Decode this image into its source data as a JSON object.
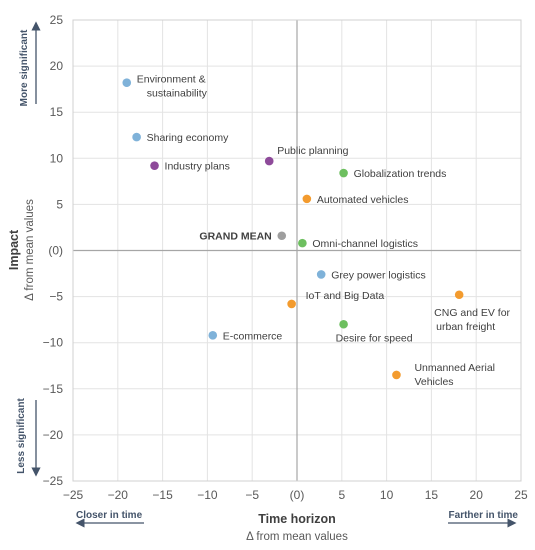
{
  "chart_data": {
    "type": "scatter",
    "title": "",
    "xlabel": "Time horizon",
    "xlabel_sub": "Δ from mean values",
    "ylabel": "Impact",
    "ylabel_sub": "Δ from mean values",
    "xlim": [
      -25,
      25
    ],
    "ylim": [
      -25,
      25
    ],
    "x_ticks": [
      "−25",
      "−20",
      "−15",
      "−10",
      "−5",
      "(0)",
      "5",
      "10",
      "15",
      "20",
      "25"
    ],
    "y_ticks": [
      "25",
      "20",
      "15",
      "10",
      "5",
      "(0)",
      "−5",
      "−10",
      "−15",
      "−20",
      "−25"
    ],
    "grid": true,
    "annotations": {
      "x_left": "Closer in time",
      "x_right": "Farther in time",
      "y_top": "More significant",
      "y_bottom": "Less significant"
    },
    "colors": {
      "blue": "#7fb2d9",
      "purple": "#8e4a9a",
      "green": "#6dbf5f",
      "orange": "#f39b2e",
      "grey": "#9e9e9e"
    },
    "points": [
      {
        "label": "Environment &",
        "label2": "sustainability",
        "x": -19,
        "y": 18.2,
        "color": "blue"
      },
      {
        "label": "Sharing economy",
        "x": -17.9,
        "y": 12.3,
        "color": "blue"
      },
      {
        "label": "Industry plans",
        "x": -15.9,
        "y": 9.2,
        "color": "purple"
      },
      {
        "label": "Public planning",
        "x": -3.1,
        "y": 9.7,
        "color": "purple"
      },
      {
        "label": "Globalization trends",
        "x": 5.2,
        "y": 8.4,
        "color": "green"
      },
      {
        "label": "Automated vehicles",
        "x": 1.1,
        "y": 5.6,
        "color": "orange"
      },
      {
        "label": "GRAND MEAN",
        "x": -1.7,
        "y": 1.6,
        "color": "grey",
        "bold": true
      },
      {
        "label": "Omni-channel logistics",
        "x": 0.6,
        "y": 0.8,
        "color": "green"
      },
      {
        "label": "Grey power logistics",
        "x": 2.7,
        "y": -2.6,
        "color": "blue"
      },
      {
        "label": "IoT and Big Data",
        "x": -0.6,
        "y": -5.8,
        "color": "orange"
      },
      {
        "label": "CNG and EV for",
        "label2": "urban freight",
        "x": 18.1,
        "y": -4.8,
        "color": "orange"
      },
      {
        "label": "Desire for speed",
        "x": 5.2,
        "y": -8.0,
        "color": "green"
      },
      {
        "label": "E-commerce",
        "x": -9.4,
        "y": -9.2,
        "color": "blue"
      },
      {
        "label": "Unmanned Aerial",
        "label2": "Vehicles",
        "x": 11.1,
        "y": -13.5,
        "color": "orange"
      }
    ]
  }
}
